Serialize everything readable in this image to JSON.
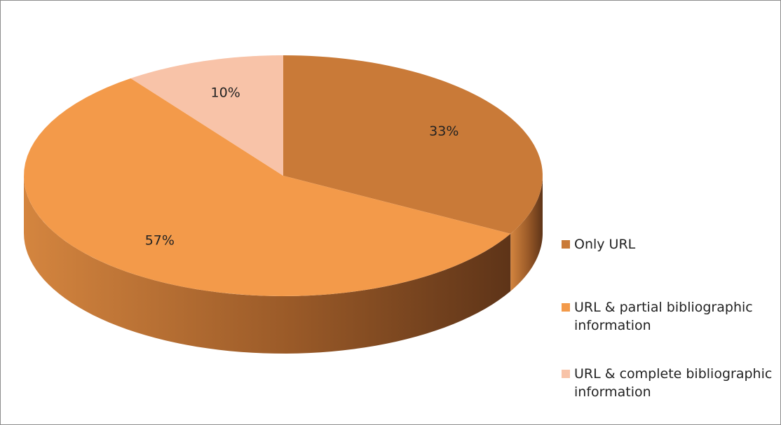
{
  "chart_data": {
    "type": "pie",
    "categories": [
      "Only URL",
      "URL & partial bibliographic information",
      "URL & complete bibliographic information"
    ],
    "values": [
      33,
      57,
      10
    ],
    "value_labels": [
      "33%",
      "57%",
      "10%"
    ],
    "colors": [
      "#c97a38",
      "#f39a4a",
      "#f8c3a8"
    ],
    "legend": "right"
  }
}
